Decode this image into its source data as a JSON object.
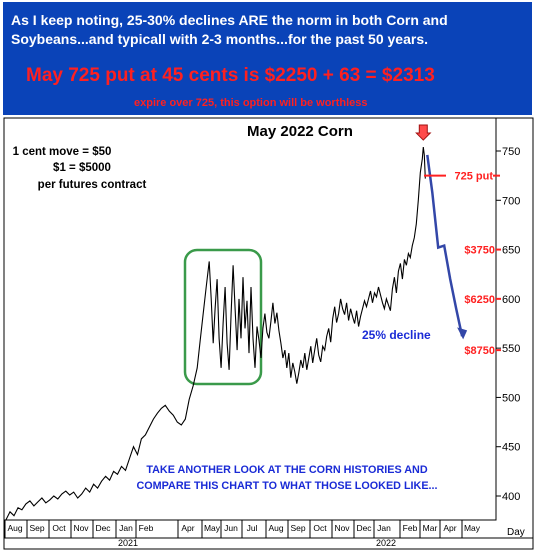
{
  "header": {
    "line1": "As I keep noting, 25-30% declines ARE the norm  in both Corn and",
    "line2": "Soybeans...and typicall with 2-3 months...for the past 50 years.",
    "headline": "May 725 put at 45 cents is $2250 + 63 = $2313",
    "subline": "expire over 725, this option will be worthless"
  },
  "colors": {
    "header_bg": "#0a43b8",
    "header_text": "#ffffff",
    "alert_red": "#ff2020",
    "price_line": "#000000",
    "projection": "#3347a8",
    "annotation_blue": "#1a2bd6",
    "box_green": "#3a9a4a"
  },
  "chart_data": {
    "type": "line",
    "title": "May 2022 Corn",
    "xlabel": "Day",
    "ylabel": "",
    "ylim": [
      372,
      760
    ],
    "yticks": [
      400,
      450,
      500,
      550,
      600,
      650,
      700,
      750
    ],
    "grid": false,
    "x_month_labels": [
      "Aug",
      "Sep",
      "Oct",
      "Nov",
      "Dec",
      "Jan",
      "Feb",
      "Apr",
      "May",
      "Jun",
      "Jul",
      "Aug",
      "Sep",
      "Oct",
      "Nov",
      "Dec",
      "Jan",
      "Feb",
      "Mar",
      "Apr",
      "May"
    ],
    "year_labels": [
      "2021",
      "2022"
    ],
    "series": [
      {
        "values": [
          [
            0,
            376
          ],
          [
            4,
            384
          ],
          [
            8,
            380
          ],
          [
            12,
            388
          ],
          [
            16,
            386
          ],
          [
            20,
            392
          ],
          [
            24,
            395
          ],
          [
            28,
            390
          ],
          [
            32,
            394
          ],
          [
            36,
            398
          ],
          [
            40,
            393
          ],
          [
            44,
            396
          ],
          [
            48,
            400
          ],
          [
            52,
            397
          ],
          [
            56,
            402
          ],
          [
            60,
            405
          ],
          [
            64,
            401
          ],
          [
            68,
            404
          ],
          [
            72,
            398
          ],
          [
            76,
            402
          ],
          [
            80,
            408
          ],
          [
            84,
            404
          ],
          [
            88,
            412
          ],
          [
            92,
            408
          ],
          [
            96,
            415
          ],
          [
            100,
            420
          ],
          [
            104,
            416
          ],
          [
            108,
            425
          ],
          [
            112,
            422
          ],
          [
            116,
            430
          ],
          [
            120,
            426
          ],
          [
            124,
            438
          ],
          [
            128,
            450
          ],
          [
            132,
            442
          ],
          [
            136,
            458
          ],
          [
            140,
            462
          ],
          [
            144,
            470
          ],
          [
            148,
            478
          ],
          [
            152,
            484
          ],
          [
            156,
            489
          ],
          [
            160,
            492
          ],
          [
            164,
            486
          ],
          [
            168,
            482
          ],
          [
            172,
            475
          ],
          [
            176,
            472
          ],
          [
            180,
            478
          ],
          [
            184,
            498
          ],
          [
            188,
            512
          ],
          [
            192,
            530
          ],
          [
            195,
            558
          ],
          [
            198,
            585
          ],
          [
            201,
            612
          ],
          [
            204,
            638
          ],
          [
            206,
            600
          ],
          [
            208,
            555
          ],
          [
            210,
            590
          ],
          [
            212,
            620
          ],
          [
            214,
            560
          ],
          [
            216,
            530
          ],
          [
            218,
            575
          ],
          [
            220,
            612
          ],
          [
            222,
            555
          ],
          [
            224,
            528
          ],
          [
            226,
            585
          ],
          [
            228,
            634
          ],
          [
            230,
            590
          ],
          [
            232,
            548
          ],
          [
            234,
            600
          ],
          [
            236,
            560
          ],
          [
            238,
            622
          ],
          [
            240,
            570
          ],
          [
            242,
            598
          ],
          [
            244,
            545
          ],
          [
            246,
            612
          ],
          [
            248,
            560
          ],
          [
            250,
            530
          ],
          [
            252,
            572
          ],
          [
            254,
            558
          ],
          [
            256,
            540
          ],
          [
            258,
            570
          ],
          [
            260,
            585
          ],
          [
            262,
            566
          ],
          [
            264,
            560
          ],
          [
            266,
            577
          ],
          [
            268,
            596
          ],
          [
            270,
            575
          ],
          [
            272,
            586
          ],
          [
            274,
            568
          ],
          [
            276,
            555
          ],
          [
            278,
            540
          ],
          [
            280,
            548
          ],
          [
            282,
            530
          ],
          [
            284,
            545
          ],
          [
            286,
            520
          ],
          [
            288,
            535
          ],
          [
            290,
            526
          ],
          [
            292,
            514
          ],
          [
            294,
            525
          ],
          [
            296,
            538
          ],
          [
            298,
            530
          ],
          [
            300,
            545
          ],
          [
            302,
            528
          ],
          [
            304,
            540
          ],
          [
            306,
            552
          ],
          [
            308,
            535
          ],
          [
            310,
            548
          ],
          [
            312,
            560
          ],
          [
            314,
            543
          ],
          [
            316,
            536
          ],
          [
            318,
            552
          ],
          [
            320,
            548
          ],
          [
            322,
            562
          ],
          [
            324,
            570
          ],
          [
            326,
            556
          ],
          [
            328,
            580
          ],
          [
            330,
            592
          ],
          [
            332,
            576
          ],
          [
            334,
            585
          ],
          [
            336,
            600
          ],
          [
            338,
            590
          ],
          [
            340,
            584
          ],
          [
            342,
            596
          ],
          [
            344,
            578
          ],
          [
            346,
            590
          ],
          [
            348,
            582
          ],
          [
            350,
            575
          ],
          [
            352,
            588
          ],
          [
            354,
            572
          ],
          [
            356,
            582
          ],
          [
            358,
            590
          ],
          [
            360,
            598
          ],
          [
            362,
            592
          ],
          [
            364,
            600
          ],
          [
            366,
            608
          ],
          [
            368,
            596
          ],
          [
            370,
            606
          ],
          [
            372,
            602
          ],
          [
            374,
            612
          ],
          [
            376,
            604
          ],
          [
            378,
            596
          ],
          [
            380,
            590
          ],
          [
            382,
            600
          ],
          [
            384,
            594
          ],
          [
            386,
            588
          ],
          [
            388,
            610
          ],
          [
            390,
            622
          ],
          [
            392,
            606
          ],
          [
            394,
            628
          ],
          [
            396,
            636
          ],
          [
            398,
            620
          ],
          [
            400,
            640
          ],
          [
            402,
            634
          ],
          [
            404,
            646
          ],
          [
            406,
            642
          ],
          [
            408,
            654
          ],
          [
            410,
            662
          ],
          [
            412,
            676
          ],
          [
            414,
            700
          ],
          [
            416,
            728
          ],
          [
            418,
            742
          ],
          [
            419,
            754
          ],
          [
            420,
            746
          ],
          [
            421,
            722
          ]
        ]
      }
    ],
    "projection": {
      "values": [
        [
          423,
          746
        ],
        [
          428,
          708
        ],
        [
          434,
          652
        ],
        [
          440,
          654
        ],
        [
          446,
          620
        ],
        [
          452,
          590
        ],
        [
          458,
          562
        ]
      ]
    },
    "annotations": {
      "scale_note": [
        "1 cent move = $50",
        "$1 = $5000",
        "per futures contract"
      ],
      "put_label": "725 put",
      "put_strike": 725,
      "price_labels": [
        {
          "text": "$3750",
          "price": 650
        },
        {
          "text": "$6250",
          "price": 600
        },
        {
          "text": "$8750",
          "price": 548
        }
      ],
      "decline": "25% decline",
      "footer": [
        "TAKE ANOTHER LOOK AT THE CORN HISTORIES AND",
        "COMPARE THIS CHART TO WHAT THOSE LOOKED LIKE..."
      ]
    }
  }
}
